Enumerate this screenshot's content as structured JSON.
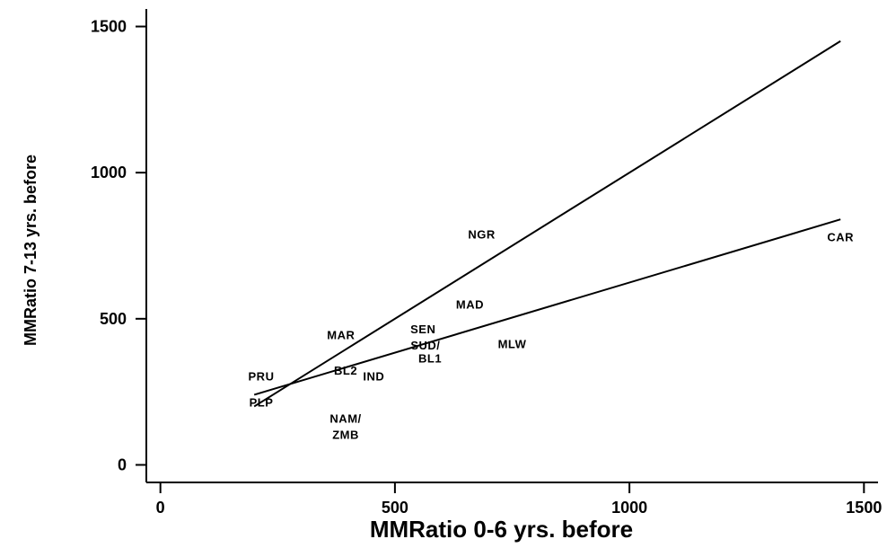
{
  "chart_data": {
    "type": "scatter",
    "title": "",
    "xlabel": "MMRatio 0-6 yrs. before",
    "ylabel": "MMRatio 7-13 yrs. before",
    "xlim": [
      -30,
      1530
    ],
    "ylim": [
      -60,
      1560
    ],
    "xticks": [
      0,
      500,
      1000,
      1500
    ],
    "yticks": [
      0,
      500,
      1000,
      1500
    ],
    "grid": false,
    "legend": "none",
    "points": [
      {
        "label": "NGR",
        "x": 685,
        "y": 790
      },
      {
        "label": "CAR",
        "x": 1450,
        "y": 780
      },
      {
        "label": "MAD",
        "x": 660,
        "y": 550
      },
      {
        "label": "MAR",
        "x": 385,
        "y": 445
      },
      {
        "label": "SEN",
        "x": 560,
        "y": 465
      },
      {
        "label": "SUD/",
        "x": 565,
        "y": 410
      },
      {
        "label": "BL1",
        "x": 575,
        "y": 365
      },
      {
        "label": "MLW",
        "x": 750,
        "y": 415
      },
      {
        "label": "PRU",
        "x": 215,
        "y": 305
      },
      {
        "label": "BL2",
        "x": 395,
        "y": 325
      },
      {
        "label": "IND",
        "x": 455,
        "y": 305
      },
      {
        "label": "PLP",
        "x": 215,
        "y": 215
      },
      {
        "label": "NAM/",
        "x": 395,
        "y": 160
      },
      {
        "label": "ZMB",
        "x": 395,
        "y": 105
      }
    ],
    "series": [
      {
        "x": [
          200,
          1450
        ],
        "y": [
          200,
          1450
        ]
      },
      {
        "x": [
          200,
          1450
        ],
        "y": [
          240,
          840
        ]
      }
    ]
  }
}
